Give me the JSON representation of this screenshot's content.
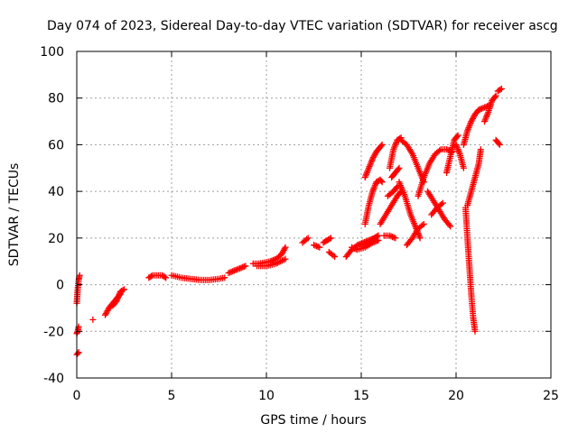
{
  "chart_data": {
    "type": "scatter",
    "title": "Day 074 of 2023, Sidereal Day-to-day VTEC variation (SDTVAR) for receiver ascg",
    "xlabel": "GPS time / hours",
    "ylabel": "SDTVAR / TECUs",
    "xlim": [
      0,
      25
    ],
    "ylim": [
      -40,
      100
    ],
    "xticks": [
      0,
      5,
      10,
      15,
      20,
      25
    ],
    "yticks": [
      -40,
      -20,
      0,
      20,
      40,
      60,
      80,
      100
    ],
    "grid": true,
    "legend": "none",
    "marker": "+",
    "color": "#ff0000",
    "segments": [
      {
        "x": [
          0.0,
          0.05,
          0.1,
          0.15
        ],
        "y": [
          -8,
          -2,
          2,
          4
        ]
      },
      {
        "x": [
          0.0,
          0.05,
          0.1
        ],
        "y": [
          -21,
          -20,
          -18
        ]
      },
      {
        "x": [
          0.0,
          0.05,
          0.1
        ],
        "y": [
          -30,
          -29.5,
          -29
        ]
      },
      {
        "x": [
          0.85
        ],
        "y": [
          -15
        ]
      },
      {
        "x": [
          1.5,
          1.7,
          1.9,
          2.1,
          2.3
        ],
        "y": [
          -13,
          -10,
          -8,
          -6,
          -4
        ]
      },
      {
        "x": [
          1.9,
          2.1,
          2.3,
          2.5
        ],
        "y": [
          -9,
          -7,
          -3,
          -2
        ]
      },
      {
        "x": [
          3.8,
          4.0,
          4.2,
          4.5,
          4.7
        ],
        "y": [
          3,
          4,
          4,
          4,
          3
        ]
      },
      {
        "x": [
          5.0,
          5.5,
          6.0,
          6.5,
          7.0,
          7.5,
          7.8
        ],
        "y": [
          4,
          3,
          2.5,
          2,
          2,
          2.5,
          3
        ]
      },
      {
        "x": [
          8.0,
          8.3,
          8.6,
          8.9
        ],
        "y": [
          5,
          6,
          7,
          8
        ]
      },
      {
        "x": [
          9.3,
          9.6,
          9.9,
          10.2,
          10.5,
          10.8,
          11.0
        ],
        "y": [
          9,
          9,
          9.5,
          10,
          11,
          13,
          16
        ]
      },
      {
        "x": [
          9.5,
          10.0,
          10.5,
          11.0
        ],
        "y": [
          8,
          8,
          9,
          11
        ]
      },
      {
        "x": [
          11.9,
          12.2
        ],
        "y": [
          18,
          20
        ]
      },
      {
        "x": [
          12.5,
          12.8
        ],
        "y": [
          17,
          16
        ]
      },
      {
        "x": [
          13.0,
          13.2,
          13.4
        ],
        "y": [
          18,
          19,
          20
        ]
      },
      {
        "x": [
          13.3,
          13.6
        ],
        "y": [
          14,
          12
        ]
      },
      {
        "x": [
          14.2,
          14.5,
          14.8,
          15.1,
          15.4,
          15.7,
          15.9
        ],
        "y": [
          12,
          15,
          17,
          18,
          19,
          20,
          21
        ]
      },
      {
        "x": [
          14.5,
          14.8,
          15.2,
          15.6,
          15.9
        ],
        "y": [
          16,
          15,
          16,
          18,
          19
        ]
      },
      {
        "x": [
          15.0,
          15.5,
          15.9
        ],
        "y": [
          17,
          19,
          21
        ]
      },
      {
        "x": [
          15.2,
          15.4,
          15.6,
          15.8,
          16.0,
          16.1
        ],
        "y": [
          26,
          34,
          40,
          44,
          45,
          44
        ]
      },
      {
        "x": [
          15.2,
          15.4,
          15.6,
          15.8,
          16.0,
          16.1
        ],
        "y": [
          46,
          50,
          54,
          57,
          59,
          60
        ]
      },
      {
        "x": [
          16.0,
          16.3,
          16.6,
          16.9,
          17.1
        ],
        "y": [
          26,
          30,
          34,
          38,
          40
        ]
      },
      {
        "x": [
          16.2,
          16.5,
          16.8
        ],
        "y": [
          21,
          21,
          20
        ]
      },
      {
        "x": [
          16.5,
          16.7,
          16.9,
          17.1
        ],
        "y": [
          50,
          58,
          62,
          63
        ]
      },
      {
        "x": [
          16.6,
          16.8,
          17.0
        ],
        "y": [
          46,
          48,
          50
        ]
      },
      {
        "x": [
          16.4,
          16.7,
          16.9
        ],
        "y": [
          38,
          40,
          42
        ]
      },
      {
        "x": [
          17.1,
          17.4,
          17.7,
          18.0,
          18.3
        ],
        "y": [
          62,
          60,
          56,
          50,
          44
        ]
      },
      {
        "x": [
          17.0,
          17.3,
          17.6,
          17.9,
          18.1
        ],
        "y": [
          44,
          38,
          30,
          24,
          20
        ]
      },
      {
        "x": [
          17.4,
          17.7,
          18.0,
          18.3
        ],
        "y": [
          17,
          20,
          24,
          26
        ]
      },
      {
        "x": [
          18.0,
          18.3,
          18.6,
          18.9,
          19.2,
          19.5,
          19.8
        ],
        "y": [
          38,
          46,
          52,
          56,
          58,
          58,
          57
        ]
      },
      {
        "x": [
          18.5,
          18.8,
          19.1,
          19.4,
          19.7
        ],
        "y": [
          40,
          36,
          32,
          28,
          25
        ]
      },
      {
        "x": [
          18.7,
          19.0,
          19.3
        ],
        "y": [
          30,
          33,
          35
        ]
      },
      {
        "x": [
          19.5,
          19.7,
          19.9,
          20.1
        ],
        "y": [
          48,
          55,
          62,
          64
        ]
      },
      {
        "x": [
          20.0,
          20.2,
          20.4
        ],
        "y": [
          60,
          56,
          50
        ]
      },
      {
        "x": [
          20.4,
          20.6,
          20.8,
          21.0,
          21.2,
          21.5,
          21.8
        ],
        "y": [
          60,
          66,
          70,
          73,
          75,
          76,
          77
        ]
      },
      {
        "x": [
          21.5,
          21.7,
          21.9,
          22.1
        ],
        "y": [
          70,
          74,
          79,
          81
        ]
      },
      {
        "x": [
          22.2,
          22.4
        ],
        "y": [
          83,
          84
        ]
      },
      {
        "x": [
          22.1,
          22.3
        ],
        "y": [
          62,
          60
        ]
      },
      {
        "x": [
          20.5,
          20.6,
          20.7,
          20.8,
          20.9,
          21.0
        ],
        "y": [
          33,
          20,
          8,
          -4,
          -14,
          -20
        ]
      },
      {
        "x": [
          20.6,
          20.8,
          21.0,
          21.2,
          21.3
        ],
        "y": [
          34,
          40,
          46,
          52,
          58
        ]
      }
    ]
  }
}
